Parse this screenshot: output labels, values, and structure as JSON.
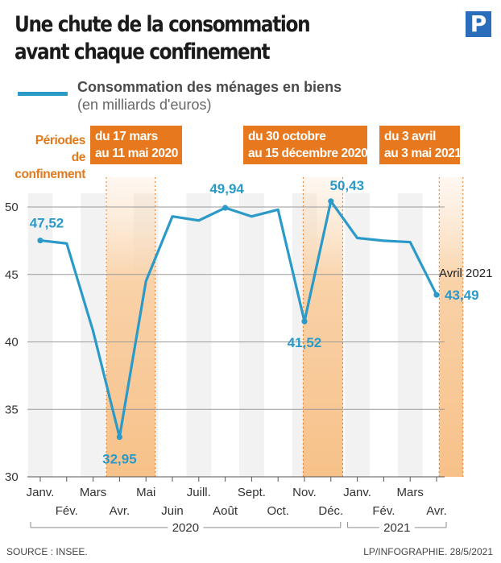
{
  "header": {
    "title_line1": "Une chute de la consommation",
    "title_line2": "avant chaque confinement",
    "logo_letter": "P"
  },
  "legend": {
    "series_name": "Consommation des ménages en biens",
    "unit": "(en milliards d'euros)",
    "line_color": "#2b9ac9"
  },
  "periods": {
    "label_line1": "Périodes",
    "label_line2": "de confinement",
    "items": [
      {
        "line1": "du 17 mars",
        "line2": "au 11 mai 2020"
      },
      {
        "line1": "du 30 octobre",
        "line2": "au 15 décembre 2020"
      },
      {
        "line1": "du 3 avril",
        "line2": "au 3 mai 2021"
      }
    ],
    "color": "#e8781d"
  },
  "annotation": "Avril 2021",
  "footer": {
    "source": "SOURCE : INSEE.",
    "credit": "LP/INFOGRAPHIE. 28/5/2021"
  },
  "chart_data": {
    "type": "line",
    "categories": [
      "Janv.",
      "Fév.",
      "Mars",
      "Avr.",
      "Mai",
      "Juin",
      "Juill.",
      "Août",
      "Sept.",
      "Oct.",
      "Nov.",
      "Déc.",
      "Janv.",
      "Fév.",
      "Mars",
      "Avr."
    ],
    "years": [
      {
        "label": "2020",
        "from": 0,
        "to": 11
      },
      {
        "label": "2021",
        "from": 12,
        "to": 15
      }
    ],
    "values": [
      47.52,
      47.3,
      40.8,
      32.95,
      44.5,
      49.3,
      49.0,
      49.94,
      49.3,
      49.8,
      41.52,
      50.43,
      47.7,
      47.5,
      47.4,
      43.49
    ],
    "labeled_points": [
      {
        "index": 0,
        "label": "47,52"
      },
      {
        "index": 3,
        "label": "32,95"
      },
      {
        "index": 7,
        "label": "49,94"
      },
      {
        "index": 10,
        "label": "41,52"
      },
      {
        "index": 11,
        "label": "50,43"
      },
      {
        "index": 15,
        "label": "43,49"
      }
    ],
    "yticks": [
      30,
      35,
      40,
      45,
      50
    ],
    "ylim": [
      30,
      52
    ],
    "lockdowns": [
      {
        "start": 2.5,
        "end": 4.35
      },
      {
        "start": 9.95,
        "end": 11.45
      },
      {
        "start": 15.1,
        "end": 16.0
      }
    ],
    "grid": true
  }
}
